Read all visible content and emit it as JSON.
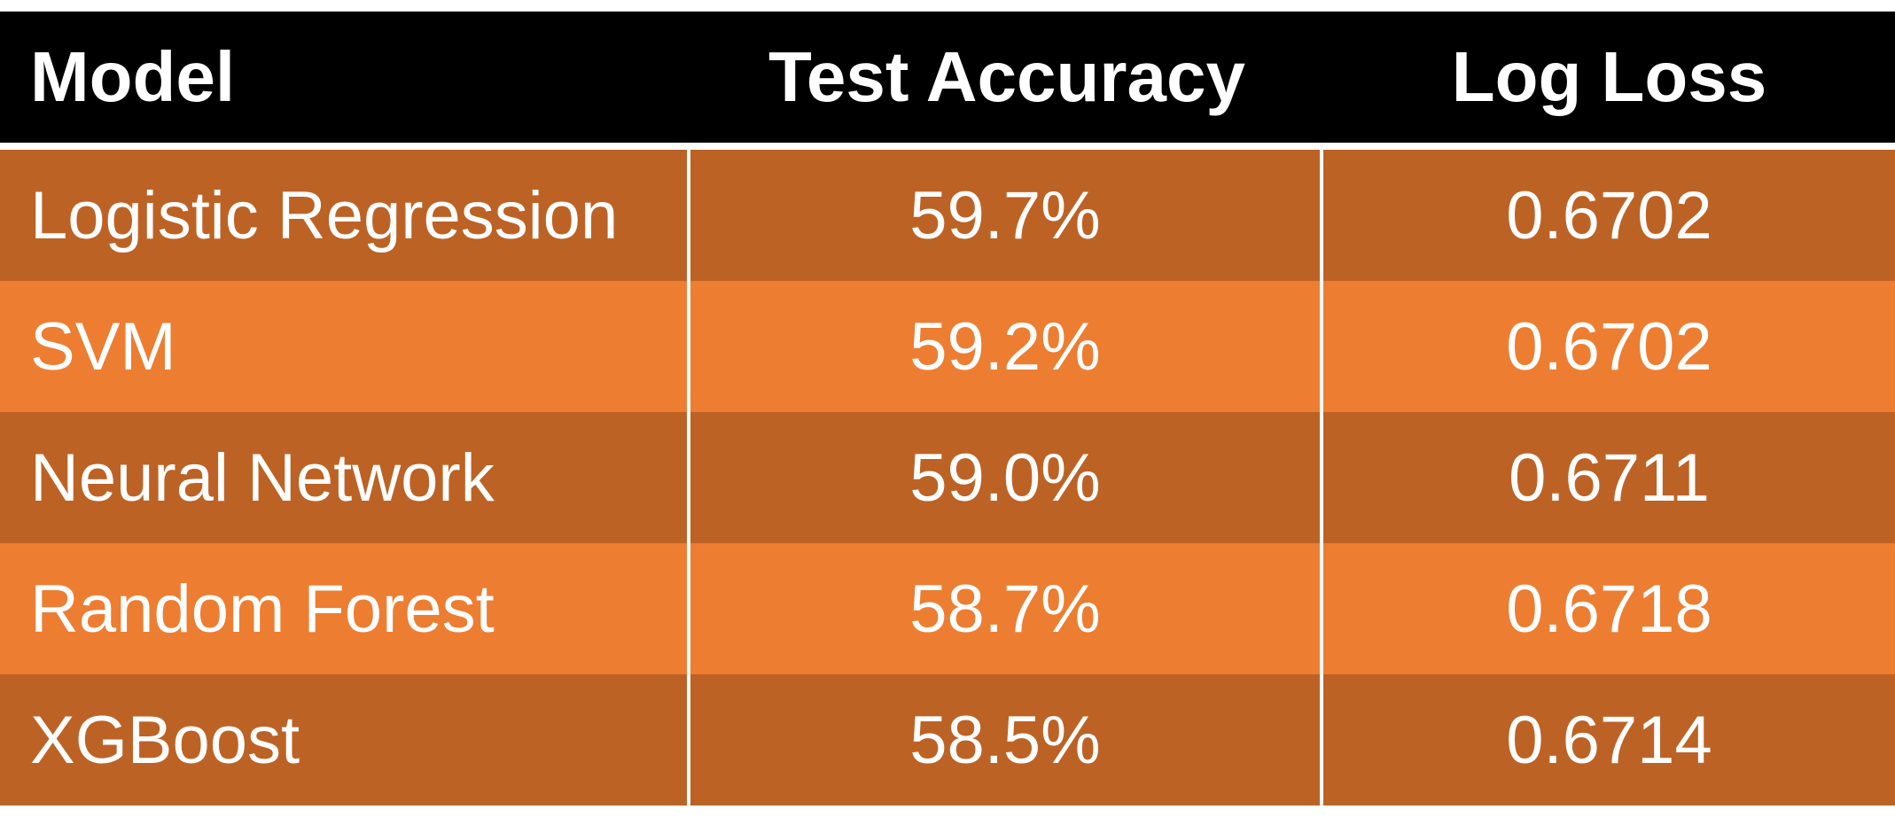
{
  "chart_data": {
    "type": "table",
    "columns": [
      "Model",
      "Test Accuracy",
      "Log Loss"
    ],
    "rows": [
      {
        "model": "Logistic Regression",
        "accuracy": "59.7%",
        "log_loss": "0.6702"
      },
      {
        "model": "SVM",
        "accuracy": "59.2%",
        "log_loss": "0.6702"
      },
      {
        "model": "Neural Network",
        "accuracy": "59.0%",
        "log_loss": "0.6711"
      },
      {
        "model": "Random Forest",
        "accuracy": "58.7%",
        "log_loss": "0.6718"
      },
      {
        "model": "XGBoost",
        "accuracy": "58.5%",
        "log_loss": "0.6714"
      }
    ]
  },
  "colors": {
    "header_bg": "#000000",
    "row_dark": "#BD6225",
    "row_light": "#ED7D31",
    "text": "#FFFFFF"
  }
}
